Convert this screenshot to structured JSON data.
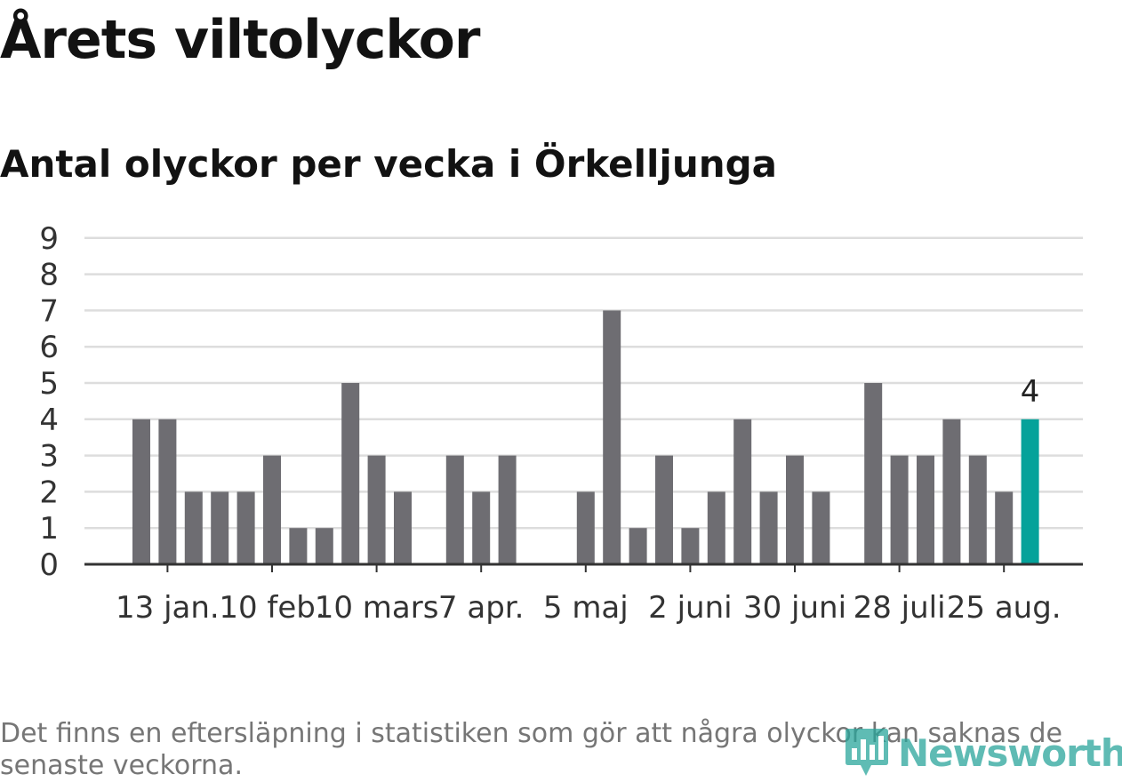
{
  "title": "Årets viltolyckor",
  "subtitle": "Antal olyckor per vecka i Örkelljunga",
  "footnote": "Det finns en eftersläpning i statistiken som gör att några olyckor kan saknas de senaste veckorna.",
  "logo": {
    "text": "Newsworthy",
    "icon": "bar-chart-logo-icon"
  },
  "colors": {
    "bar": "#6e6d72",
    "highlight": "#05a29a",
    "grid": "#dddddd",
    "axis": "#333333",
    "text": "#333333",
    "logo": "#2aa59b"
  },
  "chart_data": {
    "type": "bar",
    "x": [
      1,
      2,
      3,
      4,
      5,
      6,
      7,
      8,
      9,
      10,
      11,
      12,
      13,
      14,
      15,
      16,
      17,
      18,
      19,
      20,
      21,
      22,
      23,
      24,
      25,
      26,
      27,
      28,
      29,
      30,
      31,
      32,
      33,
      34,
      35
    ],
    "values": [
      4,
      4,
      2,
      2,
      2,
      3,
      1,
      1,
      5,
      3,
      2,
      0,
      3,
      2,
      3,
      0,
      0,
      2,
      7,
      1,
      3,
      1,
      2,
      4,
      2,
      3,
      2,
      0,
      5,
      3,
      3,
      4,
      3,
      2,
      4
    ],
    "highlight_index": 34,
    "highlight_label": "4",
    "ylim": [
      0,
      9
    ],
    "yticks": [
      0,
      1,
      2,
      3,
      4,
      5,
      6,
      7,
      8,
      9
    ],
    "xticks": [
      {
        "x": 2,
        "label": "13 jan."
      },
      {
        "x": 6,
        "label": "10 feb."
      },
      {
        "x": 10,
        "label": "10 mars"
      },
      {
        "x": 14,
        "label": "7 apr."
      },
      {
        "x": 18,
        "label": "5 maj"
      },
      {
        "x": 22,
        "label": "2 juni"
      },
      {
        "x": 26,
        "label": "30 juni"
      },
      {
        "x": 30,
        "label": "28 juli"
      },
      {
        "x": 34,
        "label": "25 aug."
      }
    ],
    "xlabel": "",
    "ylabel": "",
    "grid": true,
    "legend": "none"
  }
}
